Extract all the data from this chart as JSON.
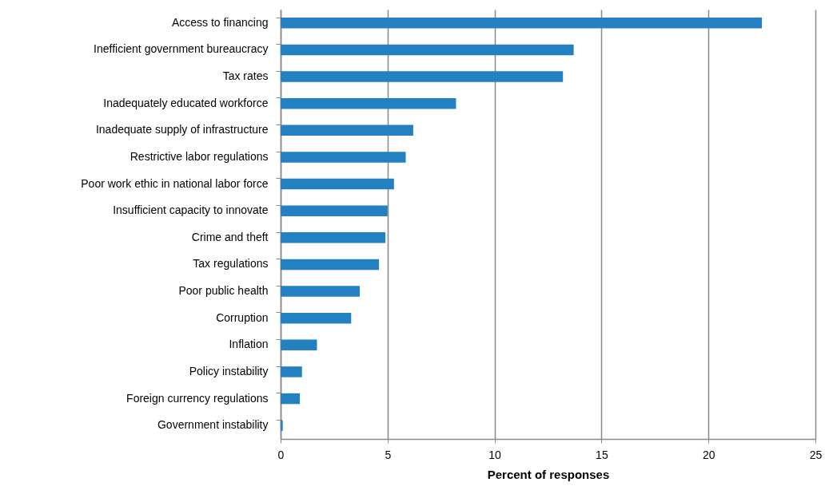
{
  "chart_data": {
    "type": "bar",
    "orientation": "horizontal",
    "xlabel": "Percent of responses",
    "categories": [
      "Access to financing",
      "Inefficient government bureaucracy",
      "Tax rates",
      "Inadequately educated workforce",
      "Inadequate supply of infrastructure",
      "Restrictive labor regulations",
      "Poor work ethic in national labor force",
      "Insufficient capacity to innovate",
      "Crime and theft",
      "Tax regulations",
      "Poor public health",
      "Corruption",
      "Inflation",
      "Policy instability",
      "Foreign currency regulations",
      "Government instability"
    ],
    "values": [
      22.5,
      13.7,
      13.2,
      8.2,
      6.2,
      5.85,
      5.3,
      5.0,
      4.9,
      4.6,
      3.7,
      3.3,
      1.7,
      1.0,
      0.9,
      0.1
    ],
    "color": "#2481c1",
    "xlim": [
      0,
      25
    ],
    "xticks": [
      0,
      5,
      10,
      15,
      20,
      25
    ],
    "grid": "x"
  }
}
